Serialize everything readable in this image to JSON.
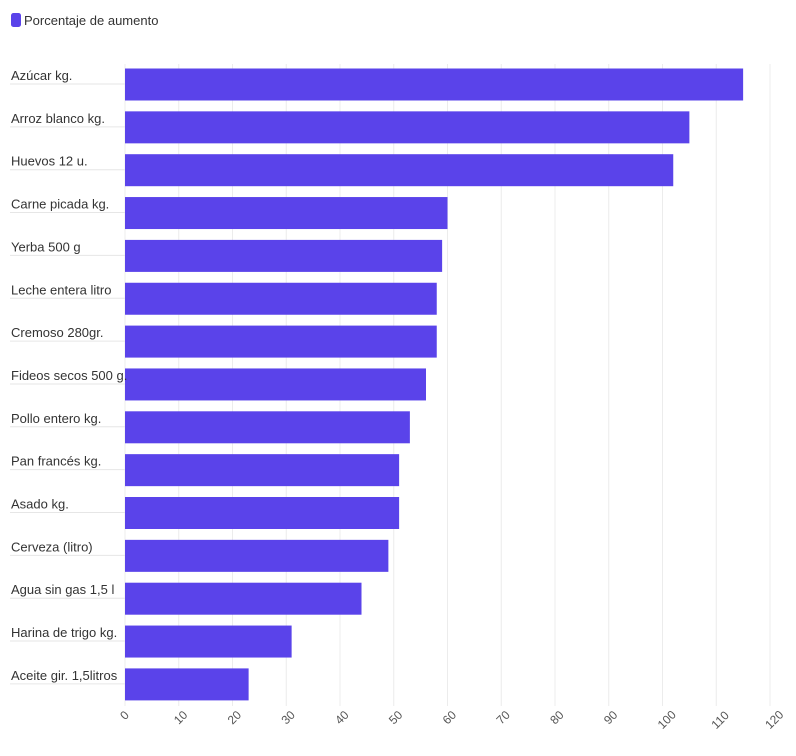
{
  "chart_data": {
    "type": "bar",
    "orientation": "horizontal",
    "legend": {
      "position": "top-left",
      "entries": [
        {
          "name": "Porcentaje de aumento",
          "color": "#5a43ea"
        }
      ]
    },
    "categories": [
      "Azúcar kg.",
      "Arroz blanco kg.",
      "Huevos 12 u.",
      "Carne picada kg.",
      "Yerba 500 g",
      "Leche entera litro",
      "Cremoso 280gr.",
      "Fideos secos 500 g.",
      "Pollo entero kg.",
      "Pan francés kg.",
      "Asado kg.",
      "Cerveza (litro)",
      "Agua sin gas 1,5 l",
      "Harina de trigo kg.",
      "Aceite gir. 1,5litros"
    ],
    "series": [
      {
        "name": "Porcentaje de aumento",
        "color": "#5a43ea",
        "values": [
          115,
          105,
          102,
          60,
          59,
          58,
          58,
          56,
          53,
          51,
          51,
          49,
          44,
          31,
          23
        ]
      }
    ],
    "xlim": [
      0,
      120
    ],
    "x_ticks": [
      "0",
      "10",
      "20",
      "30",
      "40",
      "50",
      "60",
      "70",
      "80",
      "90",
      "100",
      "110",
      "120"
    ],
    "grid": true,
    "title": "",
    "xlabel": "",
    "ylabel": ""
  }
}
